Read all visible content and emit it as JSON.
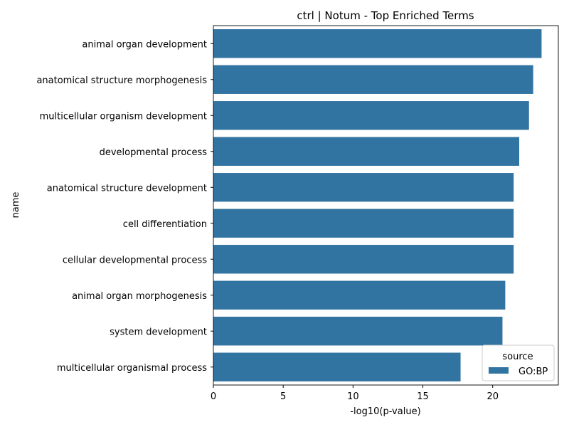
{
  "chart_data": {
    "type": "bar",
    "orientation": "horizontal",
    "title": "ctrl | Notum - Top Enriched Terms",
    "xlabel": "-log10(p-value)",
    "ylabel": "name",
    "xlim": [
      0,
      24.7
    ],
    "xticks": [
      0,
      5,
      10,
      15,
      20
    ],
    "grid": false,
    "categories": [
      "animal organ development",
      "anatomical structure morphogenesis",
      "multicellular organism development",
      "developmental process",
      "anatomical structure development",
      "cell differentiation",
      "cellular developmental process",
      "animal organ morphogenesis",
      "system development",
      "multicellular organismal process"
    ],
    "series": [
      {
        "name": "GO:BP",
        "color": "#3274a1",
        "values": [
          23.5,
          22.9,
          22.6,
          21.9,
          21.5,
          21.5,
          21.5,
          20.9,
          20.7,
          17.7
        ]
      }
    ],
    "legend": {
      "title": "source",
      "position": "lower-right",
      "entries": [
        "GO:BP"
      ]
    }
  }
}
